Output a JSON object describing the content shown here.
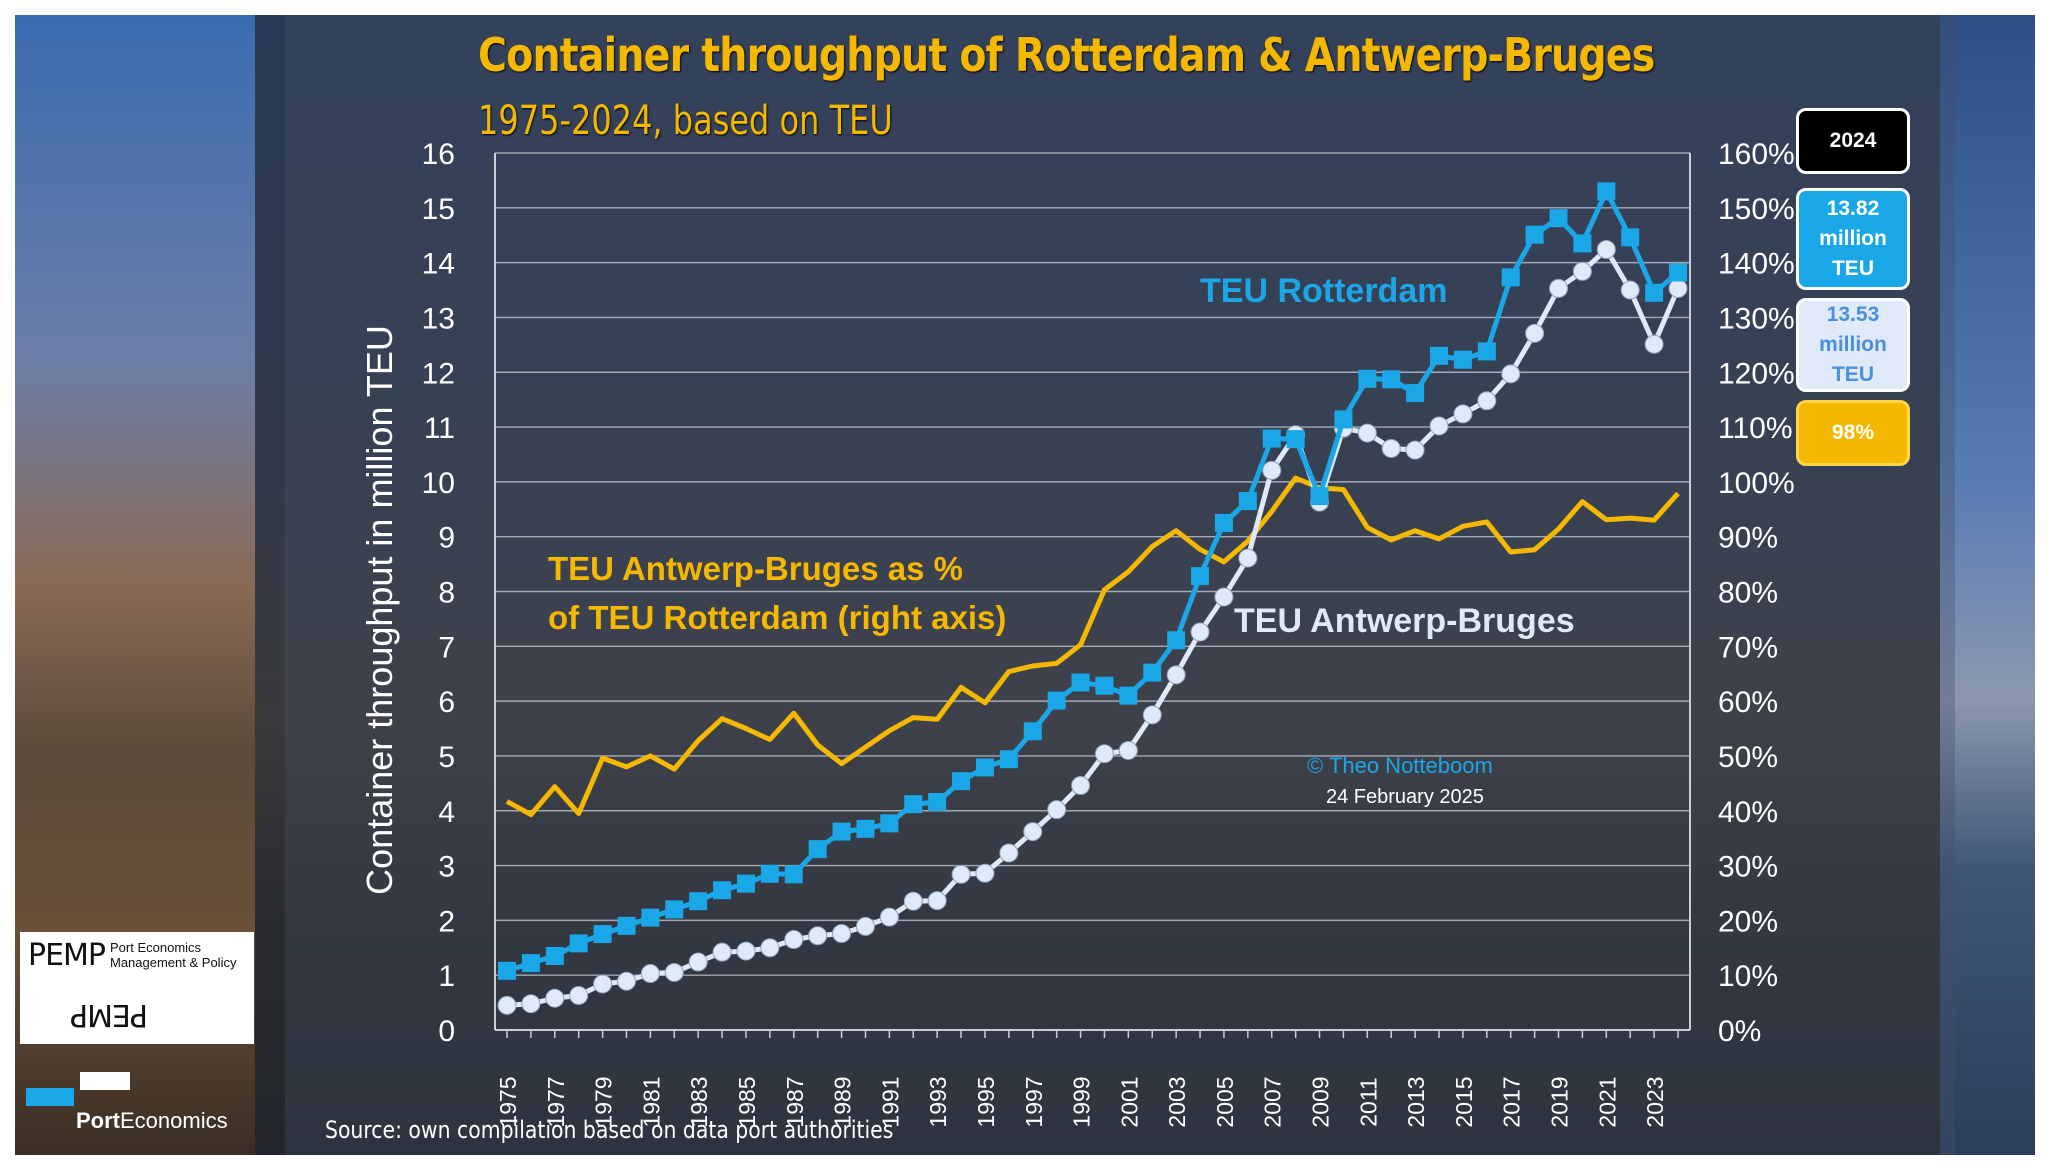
{
  "title": "Container throughput of Rotterdam & Antwerp-Bruges",
  "subtitle": "1975-2024, based on TEU",
  "source": "Source: own compilation based on data port authorities",
  "copyright": "© Theo Notteboom",
  "date": "24 February 2025",
  "labels": {
    "rotterdam": "TEU Rotterdam",
    "antwerp": "TEU Antwerp-Bruges",
    "pct_line1": "TEU Antwerp-Bruges as %",
    "pct_line2": "of TEU Rotterdam (right axis)"
  },
  "boxes": {
    "year": "2024",
    "rotterdam_l1": "13.82",
    "rotterdam_l2": "million",
    "rotterdam_l3": "TEU",
    "antwerp_l1": "13.53",
    "antwerp_l2": "million",
    "antwerp_l3": "TEU",
    "pct": "98%"
  },
  "logo": {
    "main": "PEMP",
    "side": "Port Economics Management & Policy",
    "brand_bold": "Port",
    "brand_rest": "Economics"
  },
  "colors": {
    "rotterdam": "#1aa7e8",
    "antwerp": "#dfe9f7",
    "pct": "#f5b800",
    "grid": "#c9ced8",
    "text": "#ffffff"
  },
  "chart_data": {
    "type": "line",
    "ylabel": "Container throughput in million TEU",
    "ylim": [
      0,
      16
    ],
    "y2lim": [
      0,
      160
    ],
    "y_ticks": [
      0,
      1,
      2,
      3,
      4,
      5,
      6,
      7,
      8,
      9,
      10,
      11,
      12,
      13,
      14,
      15,
      16
    ],
    "y2_ticks": [
      "0%",
      "10%",
      "20%",
      "30%",
      "40%",
      "50%",
      "60%",
      "70%",
      "80%",
      "90%",
      "100%",
      "110%",
      "120%",
      "130%",
      "140%",
      "150%",
      "160%"
    ],
    "x_tick_labels": [
      "1975",
      "1977",
      "1979",
      "1981",
      "1983",
      "1985",
      "1987",
      "1989",
      "1991",
      "1993",
      "1995",
      "1997",
      "1999",
      "2001",
      "2003",
      "2005",
      "2007",
      "2009",
      "2011",
      "2013",
      "2015",
      "2017",
      "2019",
      "2021",
      "2023"
    ],
    "x": [
      1975,
      1976,
      1977,
      1978,
      1979,
      1980,
      1981,
      1982,
      1983,
      1984,
      1985,
      1986,
      1987,
      1988,
      1989,
      1990,
      1991,
      1992,
      1993,
      1994,
      1995,
      1996,
      1997,
      1998,
      1999,
      2000,
      2001,
      2002,
      2003,
      2004,
      2005,
      2006,
      2007,
      2008,
      2009,
      2010,
      2011,
      2012,
      2013,
      2014,
      2015,
      2016,
      2017,
      2018,
      2019,
      2020,
      2021,
      2022,
      2023,
      2024
    ],
    "grid": true,
    "series": [
      {
        "name": "TEU Rotterdam",
        "axis": "left",
        "values": [
          1.08,
          1.22,
          1.35,
          1.58,
          1.75,
          1.9,
          2.05,
          2.2,
          2.35,
          2.55,
          2.67,
          2.85,
          2.84,
          3.3,
          3.62,
          3.67,
          3.77,
          4.12,
          4.16,
          4.54,
          4.79,
          4.94,
          5.45,
          6.01,
          6.34,
          6.28,
          6.1,
          6.52,
          7.11,
          8.28,
          9.25,
          9.65,
          10.79,
          10.78,
          9.74,
          11.14,
          11.88,
          11.87,
          11.62,
          12.3,
          12.23,
          12.38,
          13.73,
          14.51,
          14.81,
          14.35,
          15.3,
          14.46,
          13.45,
          13.82
        ]
      },
      {
        "name": "TEU Antwerp-Bruges",
        "axis": "left",
        "values": [
          0.45,
          0.48,
          0.58,
          0.63,
          0.84,
          0.89,
          1.03,
          1.05,
          1.24,
          1.42,
          1.44,
          1.5,
          1.65,
          1.72,
          1.76,
          1.89,
          2.06,
          2.35,
          2.36,
          2.84,
          2.86,
          3.23,
          3.62,
          4.02,
          4.46,
          5.04,
          5.1,
          5.75,
          6.48,
          7.26,
          7.9,
          8.61,
          10.21,
          10.86,
          9.63,
          10.98,
          10.89,
          10.61,
          10.58,
          11.02,
          11.24,
          11.48,
          11.97,
          12.71,
          13.53,
          13.84,
          14.24,
          13.5,
          12.51,
          13.53
        ]
      },
      {
        "name": "TEU Antwerp-Bruges as % of TEU Rotterdam (right axis)",
        "axis": "right",
        "values": [
          41.7,
          39.3,
          44.4,
          39.5,
          49.6,
          48.0,
          50.0,
          47.6,
          52.8,
          56.8,
          55.0,
          53.0,
          57.8,
          52.0,
          48.6,
          51.6,
          54.6,
          57.0,
          56.7,
          62.5,
          59.7,
          65.4,
          66.4,
          66.9,
          70.3,
          80.3,
          83.6,
          88.2,
          91.1,
          87.7,
          85.4,
          89.2,
          94.6,
          100.7,
          98.9,
          98.6,
          91.7,
          89.4,
          91.1,
          89.6,
          91.9,
          92.7,
          87.2,
          87.6,
          91.4,
          96.4,
          93.1,
          93.4,
          93.0,
          97.9
        ]
      }
    ]
  }
}
